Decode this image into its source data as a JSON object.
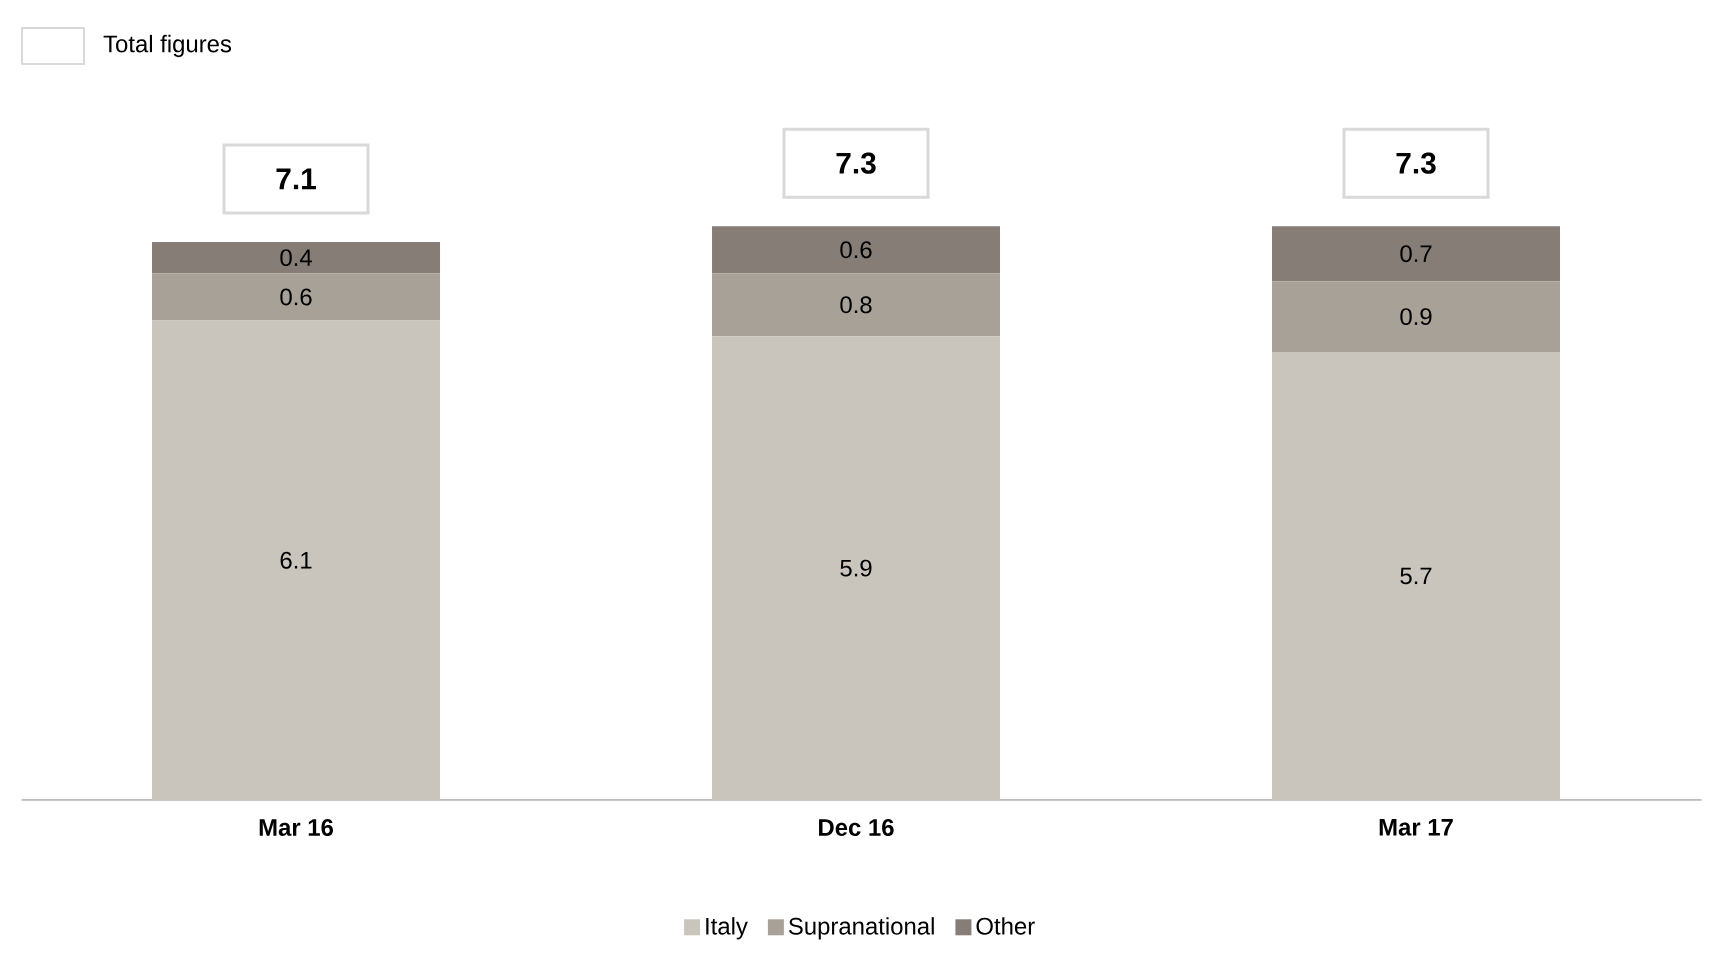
{
  "chart_data": {
    "type": "bar",
    "stacked": true,
    "categories": [
      "Mar 16",
      "Dec 16",
      "Mar 17"
    ],
    "series": [
      {
        "name": "Italy",
        "color": "#c9c4bc",
        "values": [
          6.1,
          5.9,
          5.7
        ]
      },
      {
        "name": "Supranational",
        "color": "#a8a198",
        "values": [
          0.6,
          0.8,
          0.9
        ]
      },
      {
        "name": "Other",
        "color": "#857d76",
        "values": [
          0.4,
          0.6,
          0.7
        ]
      }
    ],
    "data_labels": true,
    "totals": [
      "7.1",
      "7.3",
      "7.3"
    ],
    "legend": "bottom",
    "annotations": [
      "Total figures"
    ]
  }
}
